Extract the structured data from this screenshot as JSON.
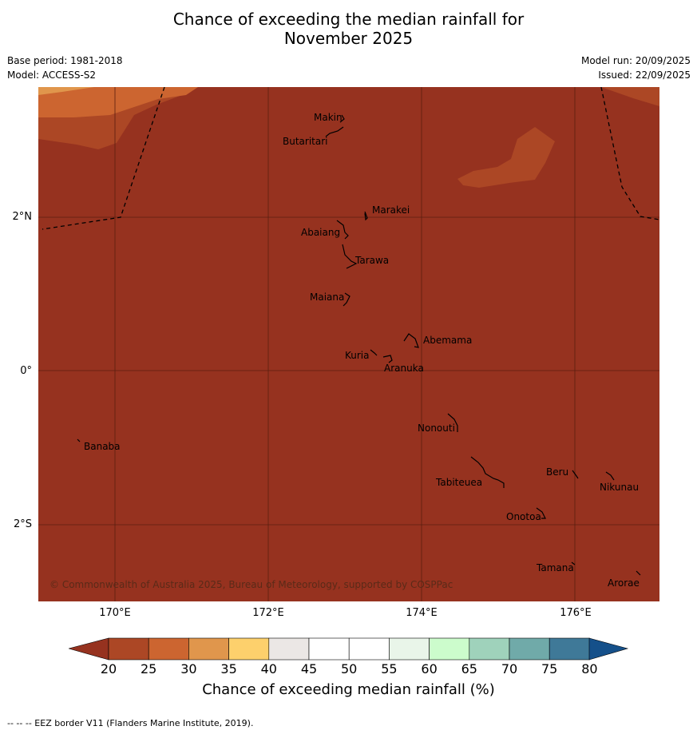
{
  "title_line1": "Chance of exceeding the median rainfall for",
  "title_line2": "November 2025",
  "base_period": "Base period: 1981-2018",
  "model": "Model: ACCESS-S2",
  "model_run": "Model run: 20/09/2025",
  "issued": "Issued: 22/09/2025",
  "lon_labels": [
    "170°E",
    "172°E",
    "174°E",
    "176°E"
  ],
  "lat_labels": [
    "2°N",
    "0°",
    "2°S"
  ],
  "places": [
    "Makin",
    "Butaritari",
    "Marakei",
    "Abaiang",
    "Tarawa",
    "Maiana",
    "Abemama",
    "Kuria",
    "Aranuka",
    "Nonouti",
    "Banaba",
    "Beru",
    "Nikunau",
    "Tabiteuea",
    "Onotoa",
    "Tamana",
    "Arorae"
  ],
  "copyright": "© Commonwealth of Australia 2025, Bureau of Meteorology, supported by COSPPac",
  "colorbar": {
    "title": "Chance of exceeding median rainfall (%)",
    "ticks": [
      "20",
      "25",
      "30",
      "35",
      "40",
      "45",
      "50",
      "55",
      "60",
      "65",
      "70",
      "75",
      "80"
    ],
    "colors": [
      "#ac4725",
      "#cc6530",
      "#e0964c",
      "#fdd06c",
      "#ebe7e5",
      "#ffffff",
      "#ffffff",
      "#e9f5e9",
      "#ccfccc",
      "#9fd2bb",
      "#70aaa9",
      "#3f7998"
    ],
    "under_color": "#96321f",
    "over_color": "#15508a"
  },
  "footer": "--  --  -- EEZ border V11 (Flanders Marine Institute, 2019)."
}
